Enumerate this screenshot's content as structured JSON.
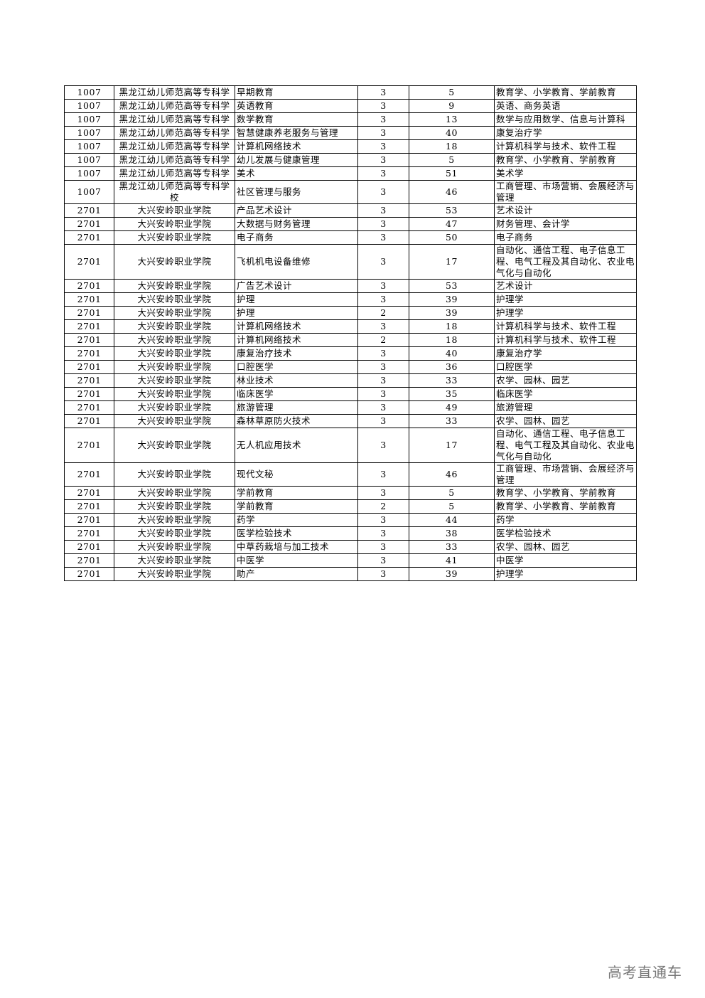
{
  "table": {
    "rows": [
      [
        "1007",
        "黑龙江幼儿师范高等专科学",
        "早期教育",
        "3",
        "5",
        "教育学、小学教育、学前教育"
      ],
      [
        "1007",
        "黑龙江幼儿师范高等专科学",
        "英语教育",
        "3",
        "9",
        "英语、商务英语"
      ],
      [
        "1007",
        "黑龙江幼儿师范高等专科学",
        "数学教育",
        "3",
        "13",
        "数学与应用数学、信息与计算科"
      ],
      [
        "1007",
        "黑龙江幼儿师范高等专科学",
        "智慧健康养老服务与管理",
        "3",
        "40",
        "康复治疗学"
      ],
      [
        "1007",
        "黑龙江幼儿师范高等专科学",
        "计算机网络技术",
        "3",
        "18",
        "计算机科学与技术、软件工程"
      ],
      [
        "1007",
        "黑龙江幼儿师范高等专科学",
        "幼儿发展与健康管理",
        "3",
        "5",
        "教育学、小学教育、学前教育"
      ],
      [
        "1007",
        "黑龙江幼儿师范高等专科学",
        "美术",
        "3",
        "51",
        "美术学"
      ],
      [
        "1007",
        "黑龙江幼儿师范高等专科学校",
        "社区管理与服务",
        "3",
        "46",
        "工商管理、市场营销、会展经济与管理"
      ],
      [
        "2701",
        "大兴安岭职业学院",
        "产品艺术设计",
        "3",
        "53",
        "艺术设计"
      ],
      [
        "2701",
        "大兴安岭职业学院",
        "大数据与财务管理",
        "3",
        "47",
        "财务管理、会计学"
      ],
      [
        "2701",
        "大兴安岭职业学院",
        "电子商务",
        "3",
        "50",
        "电子商务"
      ],
      [
        "2701",
        "大兴安岭职业学院",
        "飞机机电设备维修",
        "3",
        "17",
        "自动化、通信工程、电子信息工程、电气工程及其自动化、农业电气化与自动化"
      ],
      [
        "2701",
        "大兴安岭职业学院",
        "广告艺术设计",
        "3",
        "53",
        "艺术设计"
      ],
      [
        "2701",
        "大兴安岭职业学院",
        "护理",
        "3",
        "39",
        "护理学"
      ],
      [
        "2701",
        "大兴安岭职业学院",
        "护理",
        "2",
        "39",
        "护理学"
      ],
      [
        "2701",
        "大兴安岭职业学院",
        "计算机网络技术",
        "3",
        "18",
        "计算机科学与技术、软件工程"
      ],
      [
        "2701",
        "大兴安岭职业学院",
        "计算机网络技术",
        "2",
        "18",
        "计算机科学与技术、软件工程"
      ],
      [
        "2701",
        "大兴安岭职业学院",
        "康复治疗技术",
        "3",
        "40",
        "康复治疗学"
      ],
      [
        "2701",
        "大兴安岭职业学院",
        "口腔医学",
        "3",
        "36",
        "口腔医学"
      ],
      [
        "2701",
        "大兴安岭职业学院",
        "林业技术",
        "3",
        "33",
        "农学、园林、园艺"
      ],
      [
        "2701",
        "大兴安岭职业学院",
        "临床医学",
        "3",
        "35",
        "临床医学"
      ],
      [
        "2701",
        "大兴安岭职业学院",
        "旅游管理",
        "3",
        "49",
        "旅游管理"
      ],
      [
        "2701",
        "大兴安岭职业学院",
        "森林草原防火技术",
        "3",
        "33",
        "农学、园林、园艺"
      ],
      [
        "2701",
        "大兴安岭职业学院",
        "无人机应用技术",
        "3",
        "17",
        "自动化、通信工程、电子信息工程、电气工程及其自动化、农业电气化与自动化"
      ],
      [
        "2701",
        "大兴安岭职业学院",
        "现代文秘",
        "3",
        "46",
        "工商管理、市场营销、会展经济与管理"
      ],
      [
        "2701",
        "大兴安岭职业学院",
        "学前教育",
        "3",
        "5",
        "教育学、小学教育、学前教育"
      ],
      [
        "2701",
        "大兴安岭职业学院",
        "学前教育",
        "2",
        "5",
        "教育学、小学教育、学前教育"
      ],
      [
        "2701",
        "大兴安岭职业学院",
        "药学",
        "3",
        "44",
        "药学"
      ],
      [
        "2701",
        "大兴安岭职业学院",
        "医学检验技术",
        "3",
        "38",
        "医学检验技术"
      ],
      [
        "2701",
        "大兴安岭职业学院",
        "中草药栽培与加工技术",
        "3",
        "33",
        "农学、园林、园艺"
      ],
      [
        "2701",
        "大兴安岭职业学院",
        "中医学",
        "3",
        "41",
        "中医学"
      ],
      [
        "2701",
        "大兴安岭职业学院",
        "助产",
        "3",
        "39",
        "护理学"
      ]
    ]
  },
  "watermark": "高考直通车"
}
